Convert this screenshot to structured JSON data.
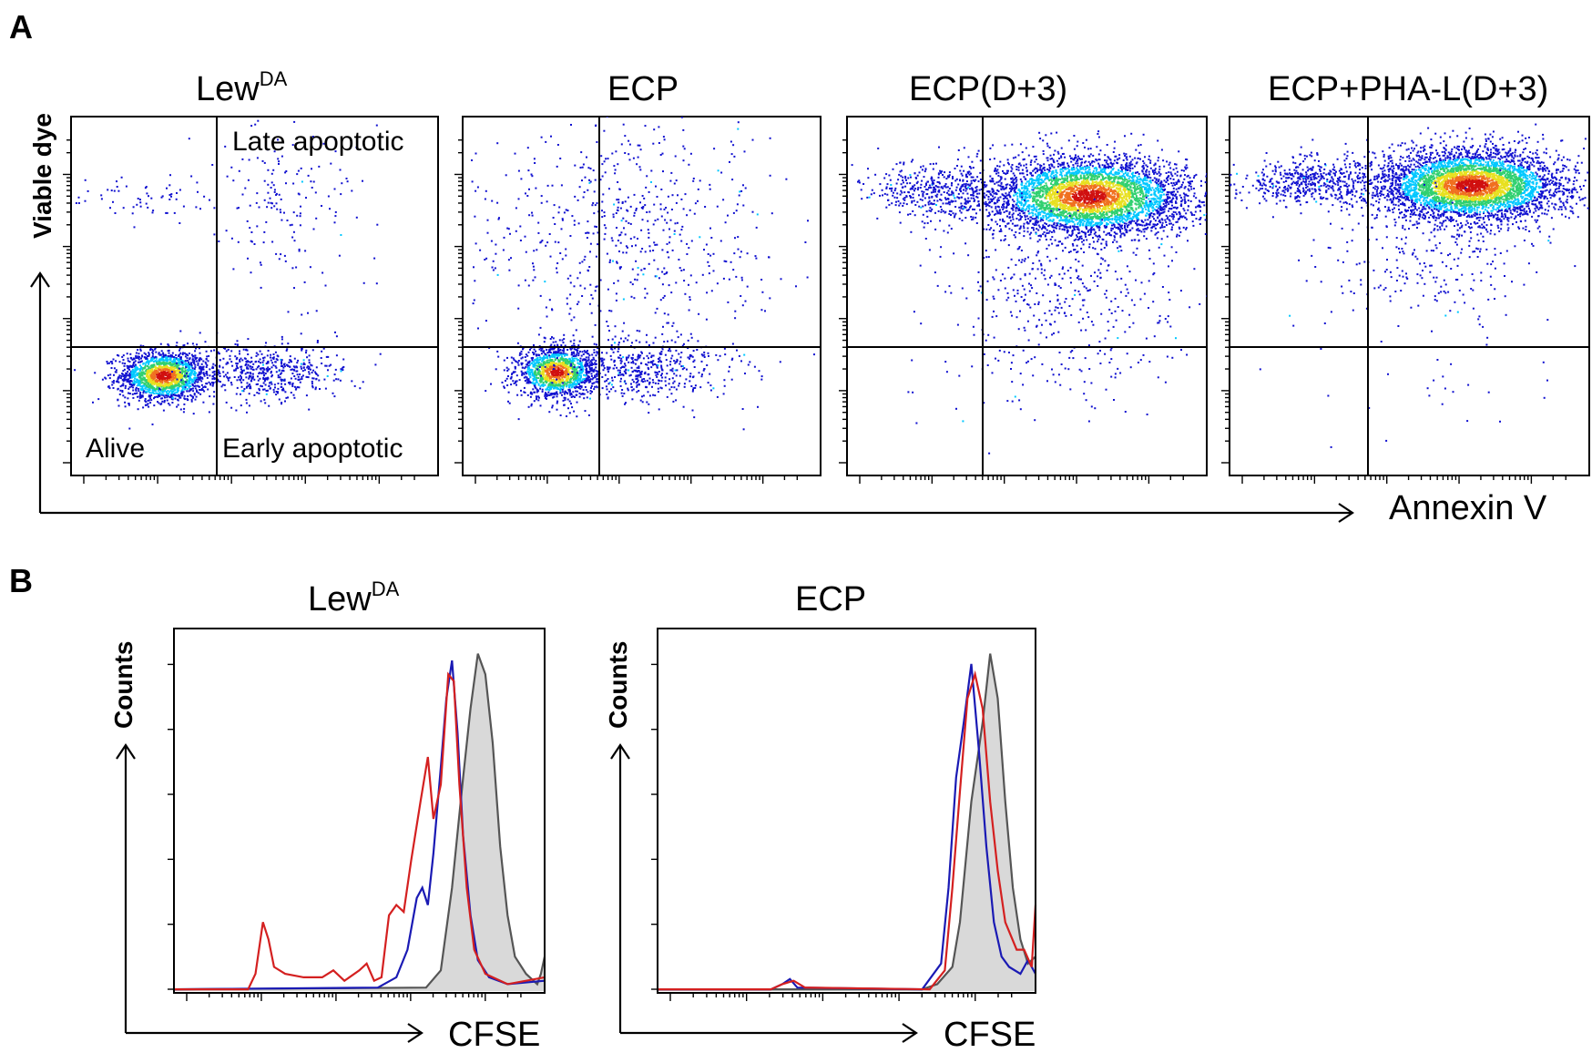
{
  "figure": {
    "panel_a_letter": "A",
    "panel_b_letter": "B"
  },
  "chart_data": [
    {
      "type": "scatter",
      "panel": "A",
      "subtype": "flow-cytometry density dot plots",
      "xlabel": "Annexin V",
      "ylabel": "Viable dye",
      "xscale": "log",
      "yscale": "log",
      "quadrant_labels": {
        "upper_right": "Late apoptotic",
        "lower_left": "Alive",
        "lower_right": "Early apoptotic"
      },
      "color_scale": [
        "#1010d0",
        "#00c8ff",
        "#30d070",
        "#e8e020",
        "#f07020",
        "#d01010"
      ],
      "plots": [
        {
          "title": "Lew",
          "title_sup": "DA",
          "populations": [
            {
              "name": "alive",
              "cx": 0.25,
              "cy": 0.28,
              "sx": 0.06,
              "sy": 0.035,
              "n": 1700,
              "density": "high"
            },
            {
              "name": "early",
              "cx": 0.52,
              "cy": 0.29,
              "sx": 0.11,
              "sy": 0.04,
              "n": 550,
              "density": "low"
            },
            {
              "name": "late",
              "cx": 0.58,
              "cy": 0.75,
              "sx": 0.12,
              "sy": 0.12,
              "n": 170,
              "density": "low"
            },
            {
              "name": "upper-left",
              "cx": 0.2,
              "cy": 0.77,
              "sx": 0.09,
              "sy": 0.04,
              "n": 60,
              "density": "low"
            }
          ]
        },
        {
          "title": "ECP",
          "title_sup": "",
          "populations": [
            {
              "name": "alive",
              "cx": 0.26,
              "cy": 0.29,
              "sx": 0.055,
              "sy": 0.035,
              "n": 1400,
              "density": "high"
            },
            {
              "name": "early",
              "cx": 0.5,
              "cy": 0.3,
              "sx": 0.12,
              "sy": 0.045,
              "n": 500,
              "density": "low"
            },
            {
              "name": "late",
              "cx": 0.45,
              "cy": 0.68,
              "sx": 0.22,
              "sy": 0.17,
              "n": 650,
              "density": "low"
            }
          ]
        },
        {
          "title": "ECP(D+3)",
          "title_sup": "",
          "populations": [
            {
              "name": "late-core",
              "cx": 0.67,
              "cy": 0.78,
              "sx": 0.14,
              "sy": 0.055,
              "n": 4200,
              "density": "high"
            },
            {
              "name": "left-tail",
              "cx": 0.25,
              "cy": 0.8,
              "sx": 0.1,
              "sy": 0.04,
              "n": 450,
              "density": "low"
            },
            {
              "name": "scatter-down",
              "cx": 0.6,
              "cy": 0.5,
              "sx": 0.17,
              "sy": 0.12,
              "n": 400,
              "density": "low"
            },
            {
              "name": "low",
              "cx": 0.5,
              "cy": 0.25,
              "sx": 0.22,
              "sy": 0.07,
              "n": 35,
              "density": "low"
            }
          ]
        },
        {
          "title": "ECP+PHA-L(D+3)",
          "title_sup": "",
          "populations": [
            {
              "name": "late-core",
              "cx": 0.67,
              "cy": 0.81,
              "sx": 0.13,
              "sy": 0.05,
              "n": 4200,
              "density": "high"
            },
            {
              "name": "left-tail",
              "cx": 0.22,
              "cy": 0.82,
              "sx": 0.1,
              "sy": 0.035,
              "n": 500,
              "density": "low"
            },
            {
              "name": "scatter-down",
              "cx": 0.58,
              "cy": 0.6,
              "sx": 0.16,
              "sy": 0.09,
              "n": 250,
              "density": "low"
            },
            {
              "name": "low",
              "cx": 0.5,
              "cy": 0.28,
              "sx": 0.25,
              "sy": 0.07,
              "n": 25,
              "density": "low"
            }
          ]
        }
      ]
    },
    {
      "type": "area",
      "panel": "B",
      "subtype": "CFSE dilution histograms",
      "xlabel": "CFSE",
      "ylabel": "Counts",
      "xscale": "log",
      "plots": [
        {
          "title": "Lew",
          "title_sup": "DA",
          "series": [
            {
              "color": "#a0a0a0",
              "fill": "#d9d9d9",
              "stroke": "#555555",
              "filled": true,
              "points": [
                [
                  0,
                  0.005
                ],
                [
                  0.68,
                  0.01
                ],
                [
                  0.72,
                  0.06
                ],
                [
                  0.75,
                  0.3
                ],
                [
                  0.78,
                  0.62
                ],
                [
                  0.8,
                  0.82
                ],
                [
                  0.82,
                  0.98
                ],
                [
                  0.84,
                  0.92
                ],
                [
                  0.86,
                  0.72
                ],
                [
                  0.88,
                  0.42
                ],
                [
                  0.9,
                  0.22
                ],
                [
                  0.92,
                  0.1
                ],
                [
                  0.95,
                  0.05
                ],
                [
                  0.98,
                  0.02
                ],
                [
                  0.99,
                  0.05
                ],
                [
                  1,
                  0.1
                ]
              ]
            },
            {
              "color": "#1a1ab4",
              "points": [
                [
                  0,
                  0.005
                ],
                [
                  0.55,
                  0.01
                ],
                [
                  0.6,
                  0.04
                ],
                [
                  0.63,
                  0.12
                ],
                [
                  0.655,
                  0.27
                ],
                [
                  0.67,
                  0.3
                ],
                [
                  0.685,
                  0.25
                ],
                [
                  0.7,
                  0.4
                ],
                [
                  0.72,
                  0.65
                ],
                [
                  0.735,
                  0.85
                ],
                [
                  0.75,
                  0.96
                ],
                [
                  0.765,
                  0.75
                ],
                [
                  0.78,
                  0.45
                ],
                [
                  0.8,
                  0.22
                ],
                [
                  0.82,
                  0.09
                ],
                [
                  0.85,
                  0.04
                ],
                [
                  0.9,
                  0.02
                ],
                [
                  1,
                  0.03
                ]
              ]
            },
            {
              "color": "#d42020",
              "points": [
                [
                  0,
                  0.005
                ],
                [
                  0.2,
                  0.005
                ],
                [
                  0.22,
                  0.05
                ],
                [
                  0.24,
                  0.2
                ],
                [
                  0.255,
                  0.15
                ],
                [
                  0.27,
                  0.07
                ],
                [
                  0.3,
                  0.05
                ],
                [
                  0.35,
                  0.04
                ],
                [
                  0.4,
                  0.04
                ],
                [
                  0.43,
                  0.06
                ],
                [
                  0.46,
                  0.03
                ],
                [
                  0.5,
                  0.06
                ],
                [
                  0.52,
                  0.08
                ],
                [
                  0.54,
                  0.03
                ],
                [
                  0.56,
                  0.04
                ],
                [
                  0.58,
                  0.22
                ],
                [
                  0.6,
                  0.25
                ],
                [
                  0.62,
                  0.23
                ],
                [
                  0.64,
                  0.38
                ],
                [
                  0.665,
                  0.55
                ],
                [
                  0.685,
                  0.68
                ],
                [
                  0.7,
                  0.5
                ],
                [
                  0.72,
                  0.6
                ],
                [
                  0.74,
                  0.92
                ],
                [
                  0.755,
                  0.9
                ],
                [
                  0.77,
                  0.6
                ],
                [
                  0.79,
                  0.3
                ],
                [
                  0.81,
                  0.12
                ],
                [
                  0.84,
                  0.05
                ],
                [
                  0.9,
                  0.02
                ],
                [
                  1,
                  0.04
                ]
              ]
            }
          ]
        },
        {
          "title": "ECP",
          "title_sup": "",
          "series": [
            {
              "color": "#a0a0a0",
              "fill": "#d9d9d9",
              "stroke": "#555555",
              "filled": true,
              "points": [
                [
                  0,
                  0.005
                ],
                [
                  0.7,
                  0.005
                ],
                [
                  0.74,
                  0.02
                ],
                [
                  0.78,
                  0.07
                ],
                [
                  0.8,
                  0.2
                ],
                [
                  0.83,
                  0.55
                ],
                [
                  0.86,
                  0.78
                ],
                [
                  0.88,
                  0.98
                ],
                [
                  0.9,
                  0.85
                ],
                [
                  0.92,
                  0.55
                ],
                [
                  0.94,
                  0.3
                ],
                [
                  0.96,
                  0.15
                ],
                [
                  0.98,
                  0.08
                ],
                [
                  1,
                  0.1
                ]
              ]
            },
            {
              "color": "#1a1ab4",
              "points": [
                [
                  0,
                  0.005
                ],
                [
                  0.3,
                  0.005
                ],
                [
                  0.33,
                  0.02
                ],
                [
                  0.35,
                  0.035
                ],
                [
                  0.37,
                  0.01
                ],
                [
                  0.7,
                  0.005
                ],
                [
                  0.75,
                  0.08
                ],
                [
                  0.77,
                  0.3
                ],
                [
                  0.79,
                  0.62
                ],
                [
                  0.81,
                  0.78
                ],
                [
                  0.83,
                  0.95
                ],
                [
                  0.85,
                  0.7
                ],
                [
                  0.87,
                  0.42
                ],
                [
                  0.89,
                  0.2
                ],
                [
                  0.91,
                  0.1
                ],
                [
                  0.93,
                  0.07
                ],
                [
                  0.96,
                  0.05
                ],
                [
                  0.98,
                  0.09
                ],
                [
                  1,
                  0.05
                ]
              ]
            },
            {
              "color": "#d42020",
              "points": [
                [
                  0,
                  0.005
                ],
                [
                  0.3,
                  0.005
                ],
                [
                  0.33,
                  0.02
                ],
                [
                  0.36,
                  0.03
                ],
                [
                  0.39,
                  0.01
                ],
                [
                  0.72,
                  0.005
                ],
                [
                  0.76,
                  0.06
                ],
                [
                  0.78,
                  0.3
                ],
                [
                  0.8,
                  0.58
                ],
                [
                  0.82,
                  0.85
                ],
                [
                  0.84,
                  0.92
                ],
                [
                  0.86,
                  0.82
                ],
                [
                  0.88,
                  0.55
                ],
                [
                  0.9,
                  0.35
                ],
                [
                  0.92,
                  0.2
                ],
                [
                  0.95,
                  0.12
                ],
                [
                  0.97,
                  0.12
                ],
                [
                  0.99,
                  0.07
                ],
                [
                  1,
                  0.25
                ]
              ]
            }
          ]
        }
      ]
    }
  ]
}
